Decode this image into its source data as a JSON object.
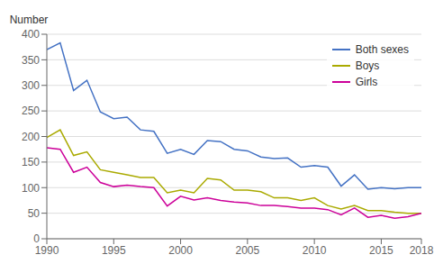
{
  "chart_data": {
    "type": "line",
    "ylabel": "Number",
    "x": [
      1990,
      1991,
      1992,
      1993,
      1994,
      1995,
      1996,
      1997,
      1998,
      1999,
      2000,
      2001,
      2002,
      2003,
      2004,
      2005,
      2006,
      2007,
      2008,
      2009,
      2010,
      2011,
      2012,
      2013,
      2014,
      2015,
      2016,
      2017,
      2018
    ],
    "series": [
      {
        "name": "Both sexes",
        "color": "#4472C4",
        "values": [
          370,
          383,
          290,
          310,
          248,
          235,
          238,
          213,
          210,
          167,
          175,
          165,
          192,
          190,
          175,
          172,
          160,
          157,
          158,
          140,
          143,
          140,
          103,
          125,
          97,
          100,
          98,
          100,
          100
        ]
      },
      {
        "name": "Boys",
        "color": "#AAAA00",
        "values": [
          198,
          213,
          163,
          170,
          135,
          130,
          125,
          120,
          120,
          90,
          95,
          90,
          118,
          115,
          95,
          95,
          92,
          80,
          80,
          75,
          80,
          65,
          58,
          65,
          55,
          55,
          52,
          50,
          50
        ]
      },
      {
        "name": "Girls",
        "color": "#CC0099",
        "values": [
          178,
          175,
          130,
          140,
          110,
          102,
          105,
          102,
          100,
          64,
          83,
          76,
          80,
          75,
          72,
          70,
          65,
          65,
          63,
          60,
          60,
          57,
          47,
          60,
          42,
          46,
          40,
          43,
          50
        ]
      }
    ],
    "xlim": [
      1990,
      2018
    ],
    "xticks": [
      1990,
      1995,
      2000,
      2005,
      2010,
      2015,
      2018
    ],
    "ylim": [
      0,
      400
    ],
    "yticks": [
      0,
      50,
      100,
      150,
      200,
      250,
      300,
      350,
      400
    ],
    "grid": true,
    "legend": "upper right"
  }
}
